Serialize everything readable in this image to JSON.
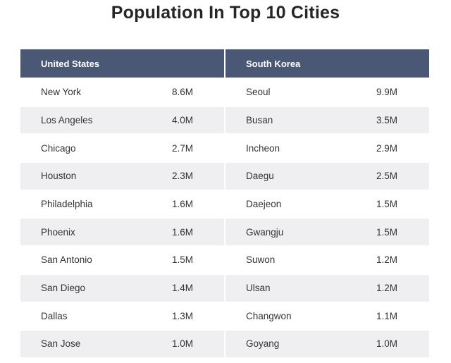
{
  "title": "Population In Top 10 Cities",
  "tables": [
    {
      "header": "United States",
      "rows": [
        {
          "city": "New York",
          "population": "8.6M"
        },
        {
          "city": "Los Angeles",
          "population": "4.0M"
        },
        {
          "city": "Chicago",
          "population": "2.7M"
        },
        {
          "city": "Houston",
          "population": "2.3M"
        },
        {
          "city": "Philadelphia",
          "population": "1.6M"
        },
        {
          "city": "Phoenix",
          "population": "1.6M"
        },
        {
          "city": "San Antonio",
          "population": "1.5M"
        },
        {
          "city": "San Diego",
          "population": "1.4M"
        },
        {
          "city": "Dallas",
          "population": "1.3M"
        },
        {
          "city": "San Jose",
          "population": "1.0M"
        }
      ]
    },
    {
      "header": "South Korea",
      "rows": [
        {
          "city": "Seoul",
          "population": "9.9M"
        },
        {
          "city": "Busan",
          "population": "3.5M"
        },
        {
          "city": "Incheon",
          "population": "2.9M"
        },
        {
          "city": "Daegu",
          "population": "2.5M"
        },
        {
          "city": "Daejeon",
          "population": "1.5M"
        },
        {
          "city": "Gwangju",
          "population": "1.5M"
        },
        {
          "city": "Suwon",
          "population": "1.2M"
        },
        {
          "city": "Ulsan",
          "population": "1.2M"
        },
        {
          "city": "Changwon",
          "population": "1.1M"
        },
        {
          "city": "Goyang",
          "population": "1.0M"
        }
      ]
    }
  ],
  "colors": {
    "header_bg": "#4a5875",
    "stripe_bg": "#efeff1"
  }
}
